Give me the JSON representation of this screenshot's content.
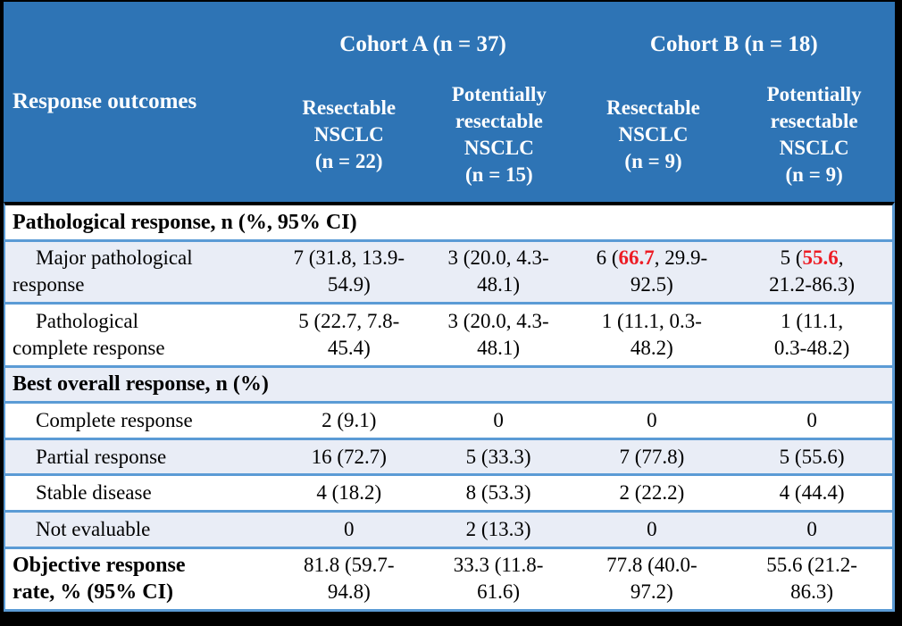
{
  "colors": {
    "header_blue": "#2E74B5",
    "band_light_blue": "#E9EDF6",
    "row_border_blue": "#5B9BD5",
    "highlight_red": "#ED1C24",
    "frame_black": "#000000"
  },
  "table": {
    "corner_label": "Response outcomes",
    "cohorts": [
      {
        "label": "Cohort A (n = 37)"
      },
      {
        "label": "Cohort B (n = 18)"
      }
    ],
    "subheaders": [
      {
        "lines": [
          "Resectable",
          "NSCLC",
          "(n = 22)"
        ]
      },
      {
        "lines": [
          "Potentially",
          "resectable",
          "NSCLC",
          "(n = 15)"
        ]
      },
      {
        "lines": [
          "Resectable",
          "NSCLC",
          "(n = 9)"
        ]
      },
      {
        "lines": [
          "Potentially",
          "resectable",
          "NSCLC",
          "(n = 9)"
        ]
      }
    ],
    "rows": [
      {
        "type": "section",
        "label": "Pathological response, n (%, 95% CI)"
      },
      {
        "type": "data",
        "indent": true,
        "bold": false,
        "label": "Major pathological\nresponse",
        "cells": [
          [
            {
              "t": "7 (31.8, 13.9-"
            },
            {
              "br": true
            },
            {
              "t": "54.9)"
            }
          ],
          [
            {
              "t": "3 (20.0, 4.3-"
            },
            {
              "br": true
            },
            {
              "t": "48.1)"
            }
          ],
          [
            {
              "t": "6 ("
            },
            {
              "t": "66.7",
              "red": true
            },
            {
              "t": ", 29.9-"
            },
            {
              "br": true
            },
            {
              "t": "92.5)"
            }
          ],
          [
            {
              "t": "5 ("
            },
            {
              "t": "55.6",
              "red": true
            },
            {
              "t": ","
            },
            {
              "br": true
            },
            {
              "t": "21.2-86.3)"
            }
          ]
        ]
      },
      {
        "type": "data",
        "indent": true,
        "bold": false,
        "label": "Pathological\ncomplete response",
        "cells": [
          [
            {
              "t": "5 (22.7, 7.8-"
            },
            {
              "br": true
            },
            {
              "t": "45.4)"
            }
          ],
          [
            {
              "t": "3 (20.0, 4.3-"
            },
            {
              "br": true
            },
            {
              "t": "48.1)"
            }
          ],
          [
            {
              "t": "1 (11.1, 0.3-"
            },
            {
              "br": true
            },
            {
              "t": "48.2)"
            }
          ],
          [
            {
              "t": "1 (11.1,"
            },
            {
              "br": true
            },
            {
              "t": "0.3-48.2)"
            }
          ]
        ]
      },
      {
        "type": "section",
        "label": "Best overall response, n (%)"
      },
      {
        "type": "data",
        "indent": true,
        "bold": false,
        "label": "Complete response",
        "cells": [
          [
            {
              "t": "2 (9.1)"
            }
          ],
          [
            {
              "t": "0"
            }
          ],
          [
            {
              "t": "0"
            }
          ],
          [
            {
              "t": "0"
            }
          ]
        ]
      },
      {
        "type": "data",
        "indent": true,
        "bold": false,
        "label": "Partial response",
        "cells": [
          [
            {
              "t": "16 (72.7)"
            }
          ],
          [
            {
              "t": "5 (33.3)"
            }
          ],
          [
            {
              "t": "7 (77.8)"
            }
          ],
          [
            {
              "t": "5 (55.6)"
            }
          ]
        ]
      },
      {
        "type": "data",
        "indent": true,
        "bold": false,
        "label": "Stable disease",
        "cells": [
          [
            {
              "t": "4 (18.2)"
            }
          ],
          [
            {
              "t": "8 (53.3)"
            }
          ],
          [
            {
              "t": "2 (22.2)"
            }
          ],
          [
            {
              "t": "4 (44.4)"
            }
          ]
        ]
      },
      {
        "type": "data",
        "indent": true,
        "bold": false,
        "label": "Not evaluable",
        "cells": [
          [
            {
              "t": "0"
            }
          ],
          [
            {
              "t": "2 (13.3)"
            }
          ],
          [
            {
              "t": "0"
            }
          ],
          [
            {
              "t": "0"
            }
          ]
        ]
      },
      {
        "type": "data",
        "indent": false,
        "bold": true,
        "label": "Objective response\nrate, % (95% CI)",
        "cells": [
          [
            {
              "t": "81.8 (59.7-"
            },
            {
              "br": true
            },
            {
              "t": "94.8)"
            }
          ],
          [
            {
              "t": "33.3 (11.8-"
            },
            {
              "br": true
            },
            {
              "t": "61.6)"
            }
          ],
          [
            {
              "t": "77.8 (40.0-"
            },
            {
              "br": true
            },
            {
              "t": "97.2)"
            }
          ],
          [
            {
              "t": "55.6 (21.2-"
            },
            {
              "br": true
            },
            {
              "t": "86.3)"
            }
          ]
        ]
      }
    ]
  }
}
